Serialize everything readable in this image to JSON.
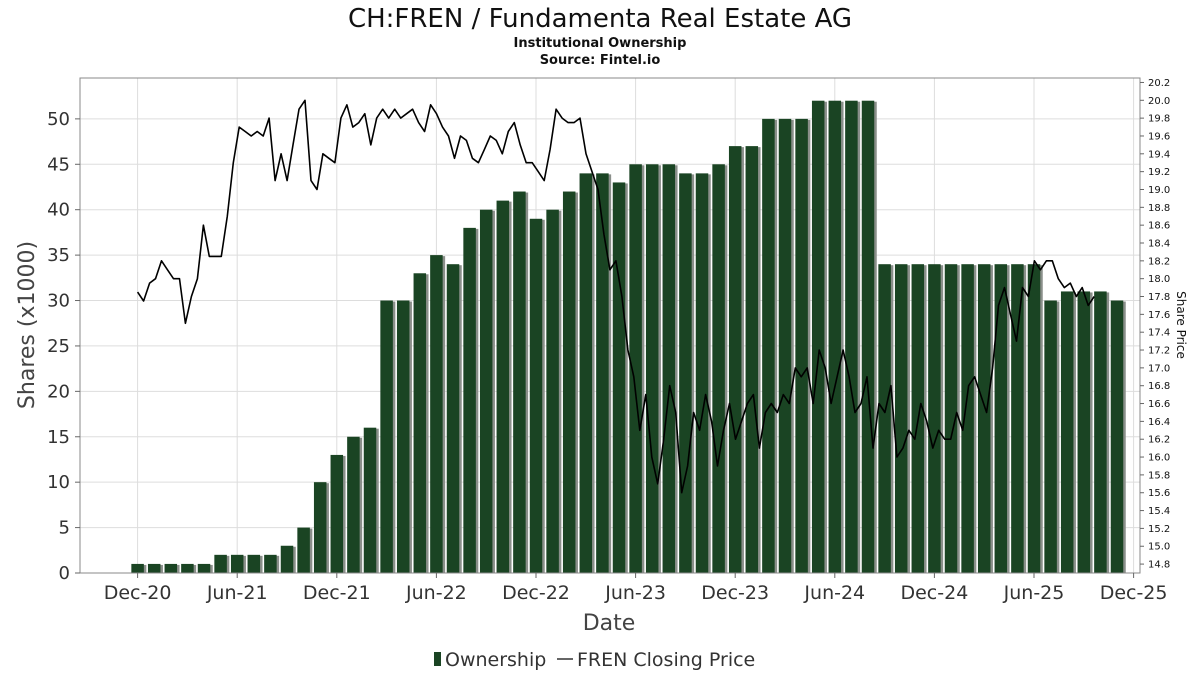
{
  "chart_data": {
    "type": "bar",
    "title": "CH:FREN / Fundamenta Real Estate AG",
    "subtitle_lines": [
      "Institutional Ownership",
      "Source: Fintel.io"
    ],
    "xlabel": "Date",
    "ylabel": "Shares (x1000)",
    "y2label": "Share Price",
    "x_tick_labels": [
      "Dec-20",
      "Jun-21",
      "Dec-21",
      "Jun-22",
      "Dec-22",
      "Jun-23",
      "Dec-23",
      "Jun-24",
      "Dec-24",
      "Jun-25",
      "Dec-25"
    ],
    "y_ticks": [
      0,
      5,
      10,
      15,
      20,
      25,
      30,
      35,
      40,
      45,
      50
    ],
    "ylim": [
      0,
      54.5
    ],
    "y2_ticks": [
      "14.8",
      "15.0",
      "15.2",
      "15.4",
      "15.6",
      "15.8",
      "16.0",
      "16.2",
      "16.4",
      "16.6",
      "16.8",
      "17.0",
      "17.2",
      "17.4",
      "17.6",
      "17.8",
      "18.0",
      "18.2",
      "18.4",
      "18.6",
      "18.8",
      "19.0",
      "19.2",
      "19.4",
      "19.6",
      "19.8",
      "20.0",
      "20.2"
    ],
    "y2lim": [
      14.7,
      20.25
    ],
    "grid": true,
    "legend_position": "bottom-center",
    "series": [
      {
        "name": "Ownership",
        "type": "bar",
        "color": "#1a4423",
        "start": "2020-12",
        "interval_months": 1,
        "values": [
          1,
          1,
          1,
          1,
          1,
          2,
          2,
          2,
          2,
          3,
          5,
          10,
          13,
          15,
          16,
          30,
          30,
          33,
          35,
          34,
          38,
          40,
          41,
          42,
          39,
          40,
          42,
          44,
          44,
          43,
          45,
          45,
          45,
          44,
          44,
          45,
          47,
          47,
          50,
          50,
          50,
          52,
          52,
          52,
          52,
          34,
          34,
          34,
          34,
          34,
          34,
          34,
          34,
          34,
          34,
          30,
          31,
          31,
          31,
          30
        ]
      },
      {
        "name": "FREN Closing Price",
        "type": "line",
        "color": "#000000",
        "axis": "right",
        "x_start": "2020-12-01",
        "x_end": "2025-09-20",
        "values": [
          17.85,
          17.75,
          17.95,
          18.0,
          18.2,
          18.1,
          18.0,
          18.0,
          17.5,
          17.8,
          18.0,
          18.6,
          18.25,
          18.25,
          18.25,
          18.7,
          19.3,
          19.7,
          19.65,
          19.6,
          19.65,
          19.6,
          19.8,
          19.1,
          19.4,
          19.1,
          19.5,
          19.9,
          20.0,
          19.1,
          19.0,
          19.4,
          19.35,
          19.3,
          19.8,
          19.95,
          19.7,
          19.75,
          19.85,
          19.5,
          19.8,
          19.9,
          19.8,
          19.9,
          19.8,
          19.85,
          19.9,
          19.75,
          19.65,
          19.95,
          19.85,
          19.7,
          19.6,
          19.35,
          19.6,
          19.55,
          19.35,
          19.3,
          19.45,
          19.6,
          19.55,
          19.4,
          19.65,
          19.75,
          19.5,
          19.3,
          19.3,
          19.2,
          19.1,
          19.45,
          19.9,
          19.8,
          19.75,
          19.75,
          19.8,
          19.4,
          19.2,
          19.0,
          18.5,
          18.1,
          18.2,
          17.8,
          17.2,
          16.9,
          16.3,
          16.7,
          16.0,
          15.7,
          16.2,
          16.8,
          16.5,
          15.6,
          15.9,
          16.5,
          16.3,
          16.7,
          16.4,
          15.9,
          16.3,
          16.6,
          16.2,
          16.4,
          16.6,
          16.7,
          16.1,
          16.5,
          16.6,
          16.5,
          16.7,
          16.6,
          17.0,
          16.9,
          17.0,
          16.6,
          17.2,
          17.0,
          16.6,
          16.9,
          17.2,
          16.9,
          16.5,
          16.6,
          16.9,
          16.1,
          16.6,
          16.5,
          16.8,
          16.0,
          16.1,
          16.3,
          16.2,
          16.6,
          16.4,
          16.1,
          16.3,
          16.2,
          16.2,
          16.5,
          16.3,
          16.8,
          16.9,
          16.7,
          16.5,
          17.0,
          17.7,
          17.9,
          17.6,
          17.3,
          17.9,
          17.8,
          18.2,
          18.1,
          18.2,
          18.2,
          18.0,
          17.9,
          17.95,
          17.8,
          17.9,
          17.7,
          17.8
        ]
      }
    ]
  }
}
